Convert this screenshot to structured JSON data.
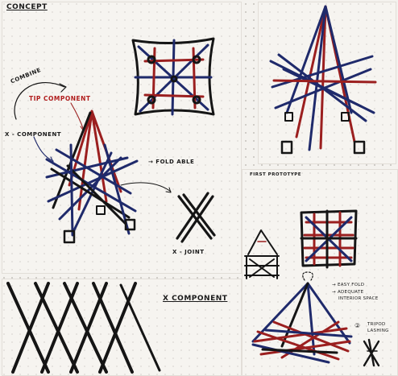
{
  "labels": {
    "concept": "CONCEPT",
    "combine": "COMBINE",
    "tip_component": "TIP COMPONENT",
    "x_component_top": "X - COMPONENT",
    "fold_able": "→ FOLD ABLE",
    "x_joint": "X - JOINT",
    "x_component_bottom": "X COMPONENT",
    "first_prototype": "FIRST PROTOTYPE",
    "note_easy_fold": "→ EASY FOLD",
    "note_adequate": "→ ADEQUATE",
    "note_interior": "INTERIOR SPACE",
    "tripod_circle": "②",
    "tripod_label": "TRIPOD",
    "lashing_label": "LASHING"
  },
  "colors": {
    "paper": "#f4f2ee",
    "ink_blue": "#1f2a6b",
    "ink_red": "#9b1f1f",
    "ink_black": "#151515"
  }
}
